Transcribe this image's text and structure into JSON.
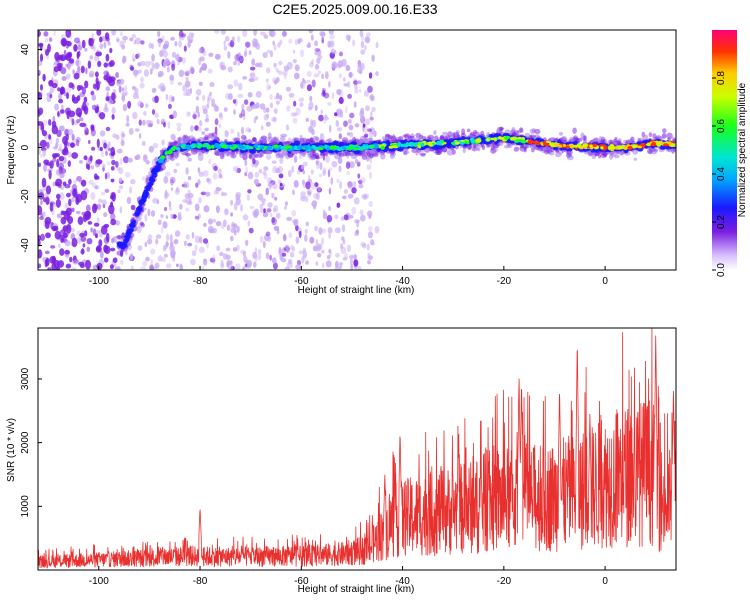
{
  "title": "C2E5.2025.009.00.16.E33",
  "colors": {
    "snr_line": "#e8302e",
    "scatter_sparse": "#c7a8f5",
    "scatter_dense": "#7a1ee0",
    "ridge_core": "#1a1aff"
  },
  "chart_data": [
    {
      "type": "heatmap",
      "title": "C2E5.2025.009.00.16.E33",
      "xlabel": "Height of straight line (km)",
      "ylabel": "Frequency (Hz)",
      "xlim": [
        -112,
        14
      ],
      "ylim": [
        -50,
        48
      ],
      "x_ticks": [
        -100,
        -80,
        -60,
        -40,
        -20,
        0
      ],
      "y_ticks": [
        -40,
        -20,
        0,
        20,
        40
      ],
      "colorbar": {
        "label": "Normalized spectral amplitude",
        "range": [
          0,
          1
        ],
        "ticks": [
          "0.0",
          "0.2",
          "0.4",
          "0.6",
          "0.8"
        ]
      },
      "ridge": {
        "x": [
          -95,
          -93,
          -91,
          -89,
          -87,
          -85,
          -80,
          -70,
          -60,
          -50,
          -40,
          -30,
          -20,
          -10,
          0,
          5,
          10,
          14
        ],
        "y": [
          -40,
          -30,
          -20,
          -10,
          -3,
          0,
          1,
          0,
          0,
          0,
          1,
          2,
          4,
          1,
          0,
          0,
          2,
          1
        ]
      }
    },
    {
      "type": "line",
      "xlabel": "Height of straight line (km)",
      "ylabel": "SNR (10 * v/v)",
      "xlim": [
        -112,
        14
      ],
      "ylim": [
        0,
        3800
      ],
      "x_ticks": [
        -100,
        -80,
        -60,
        -40,
        -20,
        0
      ],
      "y_ticks": [
        1000,
        2000,
        3000
      ],
      "envelope": {
        "x": [
          -112,
          -100,
          -90,
          -82,
          -75,
          -60,
          -52,
          -47,
          -44,
          -42,
          -40,
          -35,
          -30,
          -25,
          -22,
          -18,
          -12,
          -8,
          -5,
          -2,
          0,
          3,
          6,
          9,
          10,
          11,
          12,
          13,
          14
        ],
        "y": [
          200,
          260,
          300,
          350,
          330,
          350,
          400,
          500,
          900,
          1200,
          1300,
          1400,
          1500,
          1600,
          1800,
          1750,
          1800,
          1900,
          2000,
          2100,
          2200,
          2350,
          2400,
          2500,
          2300,
          1800,
          1600,
          1800,
          2200
        ]
      },
      "peaks": {
        "x": [
          -80,
          -43.5,
          -40.5,
          -29,
          -17,
          -16.5,
          -9,
          -5.5,
          -3,
          10,
          13.5
        ],
        "y": [
          980,
          1500,
          2200,
          1800,
          3100,
          3000,
          2900,
          3650,
          2500,
          3750,
          2900
        ]
      }
    }
  ]
}
